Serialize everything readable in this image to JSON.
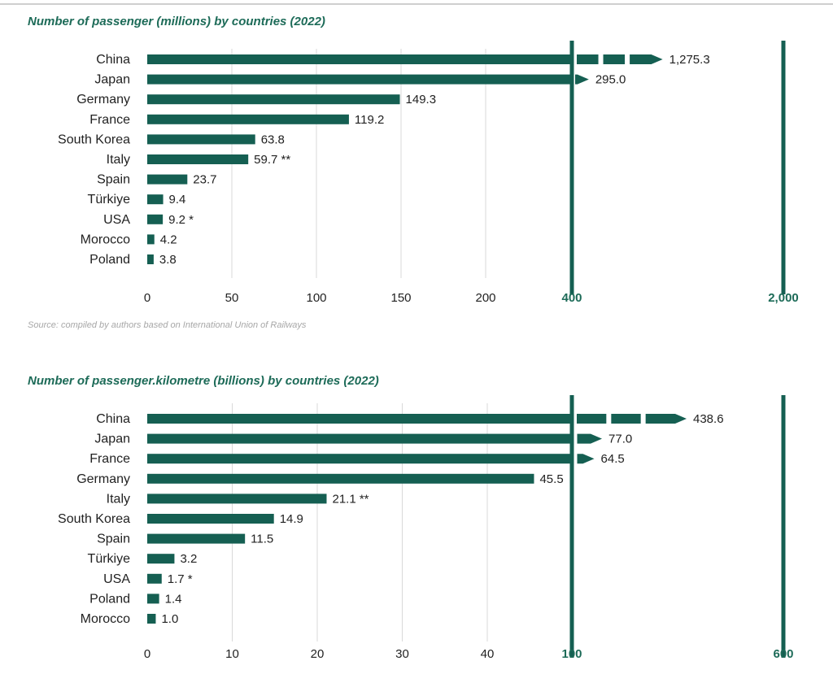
{
  "colors": {
    "bar": "#155f52",
    "grid": "#d9d9d9",
    "accent": "#1d6b58"
  },
  "source": "Source: compiled by authors based on International Union of Railways",
  "chart_data": [
    {
      "type": "bar",
      "orientation": "horizontal",
      "title": "Number of passenger (millions) by countries (2022)",
      "axis_break": true,
      "ticks": [
        "0",
        "50",
        "100",
        "150",
        "200",
        "400",
        "2,000"
      ],
      "grid": true,
      "categories": [
        "China",
        "Japan",
        "Germany",
        "France",
        "South Korea",
        "Italy",
        "Spain",
        "Türkiye",
        "USA",
        "Morocco",
        "Poland"
      ],
      "values": [
        1275.3,
        295.0,
        149.3,
        119.2,
        63.8,
        59.7,
        23.7,
        9.4,
        9.2,
        4.2,
        3.8
      ],
      "value_labels": [
        "1,275.3",
        "295.0",
        "149.3",
        "119.2",
        "63.8",
        "59.7 **",
        "23.7",
        "9.4",
        "9.2 *",
        "4.2",
        "3.8"
      ]
    },
    {
      "type": "bar",
      "orientation": "horizontal",
      "title": "Number of passenger.kilometre (billions) by countries (2022)",
      "axis_break": true,
      "ticks": [
        "0",
        "10",
        "20",
        "30",
        "40",
        "100",
        "600"
      ],
      "grid": true,
      "categories": [
        "China",
        "Japan",
        "France",
        "Germany",
        "Italy",
        "South Korea",
        "Spain",
        "Türkiye",
        "USA",
        "Poland",
        "Morocco"
      ],
      "values": [
        438.6,
        77.0,
        64.5,
        45.5,
        21.1,
        14.9,
        11.5,
        3.2,
        1.7,
        1.4,
        1.0
      ],
      "value_labels": [
        "438.6",
        "77.0",
        "64.5",
        "45.5",
        "21.1 **",
        "14.9",
        "11.5",
        "3.2",
        "1.7 *",
        "1.4",
        "1.0"
      ]
    }
  ]
}
